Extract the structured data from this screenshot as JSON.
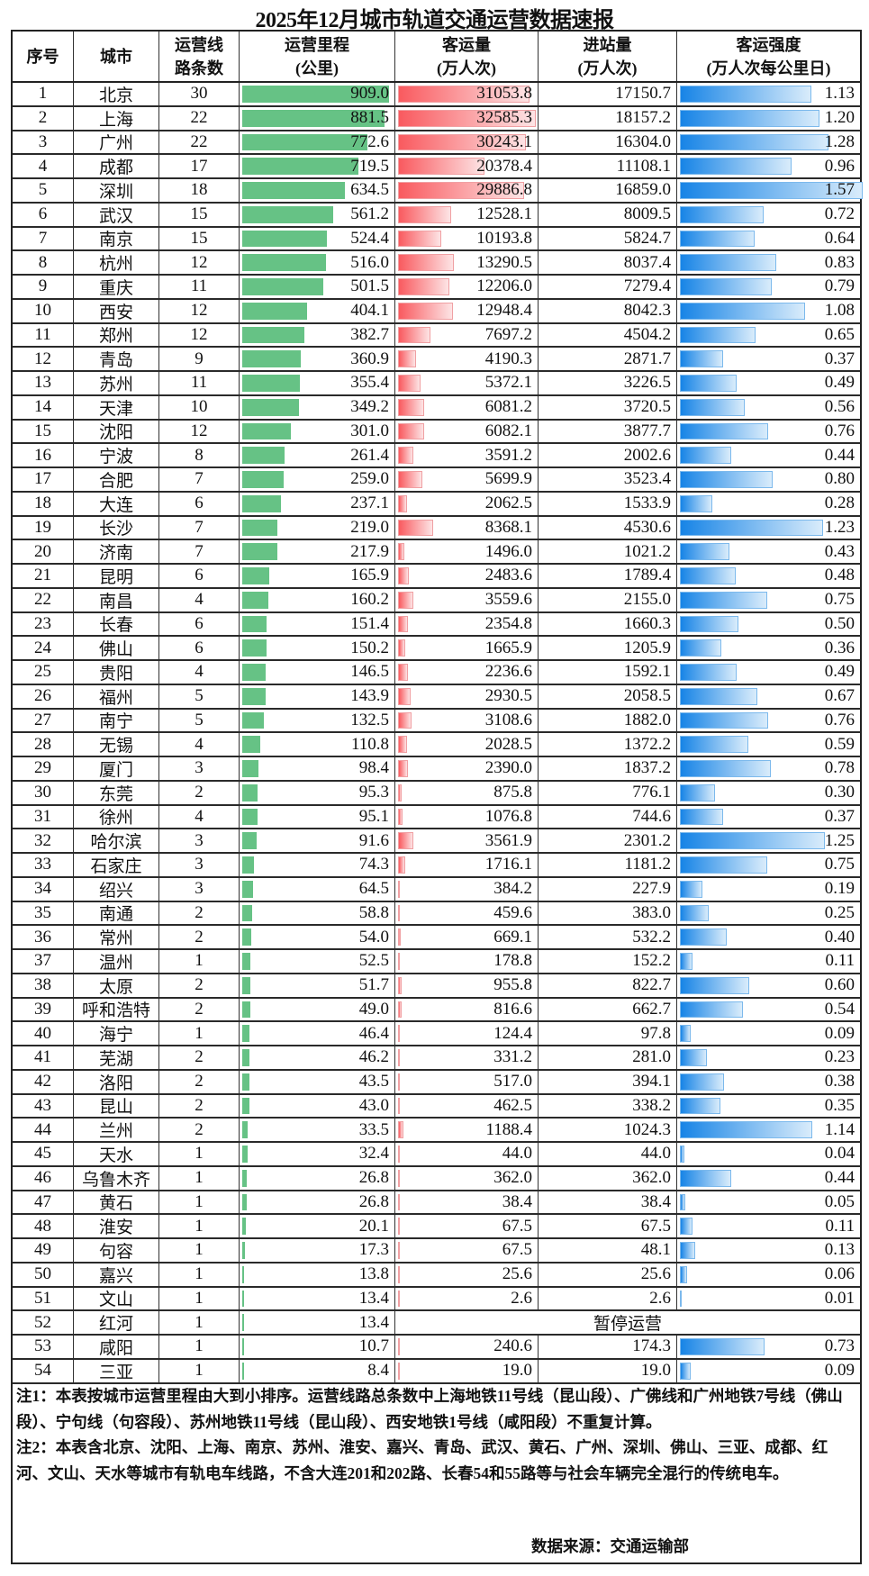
{
  "title": "2025年12月城市轨道交通运营数据速报",
  "headers": {
    "index": "序号",
    "city": "城市",
    "lines": [
      "运营线",
      "路条数"
    ],
    "mileage": [
      "运营里程",
      "(公里)"
    ],
    "ridership": [
      "客运量",
      "(万人次)"
    ],
    "entries": [
      "进站量",
      "(万人次)"
    ],
    "intensity": [
      "客运强度",
      "(万人次每公里日)"
    ]
  },
  "colors": {
    "mileage_bar": "#66c285",
    "ridership_bar": "#f95a5f",
    "intensity_bar": "#1784e6"
  },
  "rows": [
    [
      "1",
      "北京",
      "30",
      "909.0",
      "31053.8",
      "17150.7",
      "1.13"
    ],
    [
      "2",
      "上海",
      "22",
      "881.5",
      "32585.3",
      "18157.2",
      "1.20"
    ],
    [
      "3",
      "广州",
      "22",
      "772.6",
      "30243.1",
      "16304.0",
      "1.28"
    ],
    [
      "4",
      "成都",
      "17",
      "719.5",
      "20378.4",
      "11108.1",
      "0.96"
    ],
    [
      "5",
      "深圳",
      "18",
      "634.5",
      "29886.8",
      "16859.0",
      "1.57"
    ],
    [
      "6",
      "武汉",
      "15",
      "561.2",
      "12528.1",
      "8009.5",
      "0.72"
    ],
    [
      "7",
      "南京",
      "15",
      "524.4",
      "10193.8",
      "5824.7",
      "0.64"
    ],
    [
      "8",
      "杭州",
      "12",
      "516.0",
      "13290.5",
      "8037.4",
      "0.83"
    ],
    [
      "9",
      "重庆",
      "11",
      "501.5",
      "12206.0",
      "7279.4",
      "0.79"
    ],
    [
      "10",
      "西安",
      "12",
      "404.1",
      "12948.4",
      "8042.3",
      "1.08"
    ],
    [
      "11",
      "郑州",
      "12",
      "382.7",
      "7697.2",
      "4504.2",
      "0.65"
    ],
    [
      "12",
      "青岛",
      "9",
      "360.9",
      "4190.3",
      "2871.7",
      "0.37"
    ],
    [
      "13",
      "苏州",
      "11",
      "355.4",
      "5372.1",
      "3226.5",
      "0.49"
    ],
    [
      "14",
      "天津",
      "10",
      "349.2",
      "6081.2",
      "3720.5",
      "0.56"
    ],
    [
      "15",
      "沈阳",
      "12",
      "301.0",
      "6082.1",
      "3877.7",
      "0.76"
    ],
    [
      "16",
      "宁波",
      "8",
      "261.4",
      "3591.2",
      "2002.6",
      "0.44"
    ],
    [
      "17",
      "合肥",
      "7",
      "259.0",
      "5699.9",
      "3523.4",
      "0.80"
    ],
    [
      "18",
      "大连",
      "6",
      "237.1",
      "2062.5",
      "1533.9",
      "0.28"
    ],
    [
      "19",
      "长沙",
      "7",
      "219.0",
      "8368.1",
      "4530.6",
      "1.23"
    ],
    [
      "20",
      "济南",
      "7",
      "217.9",
      "1496.0",
      "1021.2",
      "0.43"
    ],
    [
      "21",
      "昆明",
      "6",
      "165.9",
      "2483.6",
      "1789.4",
      "0.48"
    ],
    [
      "22",
      "南昌",
      "4",
      "160.2",
      "3559.6",
      "2155.0",
      "0.75"
    ],
    [
      "23",
      "长春",
      "6",
      "151.4",
      "2354.8",
      "1660.3",
      "0.50"
    ],
    [
      "24",
      "佛山",
      "6",
      "150.2",
      "1665.9",
      "1205.9",
      "0.36"
    ],
    [
      "25",
      "贵阳",
      "4",
      "146.5",
      "2236.6",
      "1592.1",
      "0.49"
    ],
    [
      "26",
      "福州",
      "5",
      "143.9",
      "2930.5",
      "2058.5",
      "0.67"
    ],
    [
      "27",
      "南宁",
      "5",
      "132.5",
      "3108.6",
      "1882.0",
      "0.76"
    ],
    [
      "28",
      "无锡",
      "4",
      "110.8",
      "2028.5",
      "1372.2",
      "0.59"
    ],
    [
      "29",
      "厦门",
      "3",
      "98.4",
      "2390.0",
      "1837.2",
      "0.78"
    ],
    [
      "30",
      "东莞",
      "2",
      "95.3",
      "875.8",
      "776.1",
      "0.30"
    ],
    [
      "31",
      "徐州",
      "4",
      "95.1",
      "1076.8",
      "744.6",
      "0.37"
    ],
    [
      "32",
      "哈尔滨",
      "3",
      "91.6",
      "3561.9",
      "2301.2",
      "1.25"
    ],
    [
      "33",
      "石家庄",
      "3",
      "74.3",
      "1716.1",
      "1181.2",
      "0.75"
    ],
    [
      "34",
      "绍兴",
      "3",
      "64.5",
      "384.2",
      "227.9",
      "0.19"
    ],
    [
      "35",
      "南通",
      "2",
      "58.8",
      "459.6",
      "383.0",
      "0.25"
    ],
    [
      "36",
      "常州",
      "2",
      "54.0",
      "669.1",
      "532.2",
      "0.40"
    ],
    [
      "37",
      "温州",
      "1",
      "52.5",
      "178.8",
      "152.2",
      "0.11"
    ],
    [
      "38",
      "太原",
      "2",
      "51.7",
      "955.8",
      "822.7",
      "0.60"
    ],
    [
      "39",
      "呼和浩特",
      "2",
      "49.0",
      "816.6",
      "662.7",
      "0.54"
    ],
    [
      "40",
      "海宁",
      "1",
      "46.4",
      "124.4",
      "97.8",
      "0.09"
    ],
    [
      "41",
      "芜湖",
      "2",
      "46.2",
      "331.2",
      "281.0",
      "0.23"
    ],
    [
      "42",
      "洛阳",
      "2",
      "43.5",
      "517.0",
      "394.1",
      "0.38"
    ],
    [
      "43",
      "昆山",
      "2",
      "43.0",
      "462.5",
      "338.2",
      "0.35"
    ],
    [
      "44",
      "兰州",
      "2",
      "33.5",
      "1188.4",
      "1024.3",
      "1.14"
    ],
    [
      "45",
      "天水",
      "1",
      "32.4",
      "44.0",
      "44.0",
      "0.04"
    ],
    [
      "46",
      "乌鲁木齐",
      "1",
      "26.8",
      "362.0",
      "362.0",
      "0.44"
    ],
    [
      "47",
      "黄石",
      "1",
      "26.8",
      "38.4",
      "38.4",
      "0.05"
    ],
    [
      "48",
      "淮安",
      "1",
      "20.1",
      "67.5",
      "67.5",
      "0.11"
    ],
    [
      "49",
      "句容",
      "1",
      "17.3",
      "67.5",
      "48.1",
      "0.13"
    ],
    [
      "50",
      "嘉兴",
      "1",
      "13.8",
      "25.6",
      "25.6",
      "0.06"
    ],
    [
      "51",
      "文山",
      "1",
      "13.4",
      "2.6",
      "2.6",
      "0.01"
    ],
    [
      "52",
      "红河",
      "1",
      "13.4",
      "暂停运营"
    ],
    [
      "53",
      "咸阳",
      "1",
      "10.7",
      "240.6",
      "174.3",
      "0.73"
    ],
    [
      "54",
      "三亚",
      "1",
      "8.4",
      "19.0",
      "19.0",
      "0.09"
    ]
  ],
  "notes": {
    "note1": "注1：本表按城市运营里程由大到小排序。运营线路总条数中上海地铁11号线（昆山段）、广佛线和广州地铁7号线（佛山段）、宁句线（句容段）、苏州地铁11号线（昆山段）、西安地铁1号线（咸阳段）不重复计算。",
    "note2": "注2：本表含北京、沈阳、上海、南京、苏州、淮安、嘉兴、青岛、武汉、黄石、广州、深圳、佛山、三亚、成都、红河、文山、天水等城市有轨电车线路，不含大连201和202路、长春54和55路等与社会车辆完全混行的传统电车。",
    "source": "数据来源：交通运输部"
  }
}
